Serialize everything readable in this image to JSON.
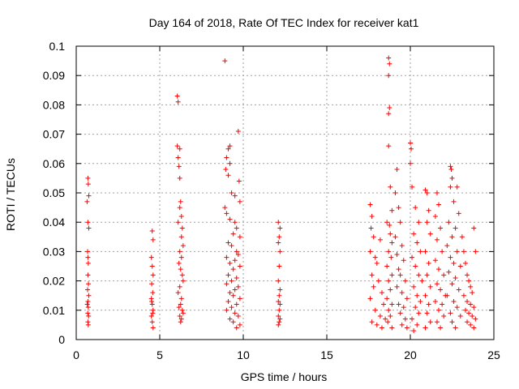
{
  "chart_data": {
    "type": "scatter",
    "title": "Day 164 of 2018, Rate Of TEC Index for receiver kat1",
    "xlabel": "GPS time / hours",
    "ylabel": "ROTI / TECUs",
    "xlim": [
      0,
      25
    ],
    "ylim": [
      0,
      0.1
    ],
    "x_ticks": [
      "0",
      "5",
      "10",
      "15",
      "20",
      "25"
    ],
    "y_ticks": [
      "0",
      "0.01",
      "0.02",
      "0.03",
      "0.04",
      "0.05",
      "0.06",
      "0.07",
      "0.08",
      "0.09",
      "0.1"
    ],
    "grid": true,
    "marker": "+",
    "color": "#ff0000",
    "series": [
      {
        "name": "ROTI",
        "points": [
          [
            0.65,
            0.047
          ],
          [
            0.7,
            0.055
          ],
          [
            0.72,
            0.053
          ],
          [
            0.75,
            0.049
          ],
          [
            0.7,
            0.04
          ],
          [
            0.75,
            0.038
          ],
          [
            0.68,
            0.03
          ],
          [
            0.7,
            0.028
          ],
          [
            0.72,
            0.026
          ],
          [
            0.7,
            0.022
          ],
          [
            0.73,
            0.019
          ],
          [
            0.68,
            0.017
          ],
          [
            0.75,
            0.015
          ],
          [
            0.7,
            0.013
          ],
          [
            0.72,
            0.011
          ],
          [
            0.69,
            0.009
          ],
          [
            0.74,
            0.008
          ],
          [
            0.7,
            0.006
          ],
          [
            0.72,
            0.005
          ],
          [
            0.66,
            0.012
          ],
          [
            4.55,
            0.037
          ],
          [
            4.6,
            0.034
          ],
          [
            4.5,
            0.028
          ],
          [
            4.55,
            0.025
          ],
          [
            4.6,
            0.022
          ],
          [
            4.52,
            0.019
          ],
          [
            4.58,
            0.016
          ],
          [
            4.5,
            0.014
          ],
          [
            4.55,
            0.012
          ],
          [
            4.6,
            0.01
          ],
          [
            4.5,
            0.008
          ],
          [
            4.55,
            0.006
          ],
          [
            4.6,
            0.004
          ],
          [
            4.52,
            0.013
          ],
          [
            4.58,
            0.009
          ],
          [
            6.05,
            0.083
          ],
          [
            6.1,
            0.081
          ],
          [
            6.05,
            0.066
          ],
          [
            6.2,
            0.065
          ],
          [
            6.1,
            0.062
          ],
          [
            6.15,
            0.059
          ],
          [
            6.2,
            0.055
          ],
          [
            6.25,
            0.047
          ],
          [
            6.2,
            0.045
          ],
          [
            6.3,
            0.042
          ],
          [
            6.1,
            0.04
          ],
          [
            6.35,
            0.038
          ],
          [
            6.3,
            0.035
          ],
          [
            6.4,
            0.032
          ],
          [
            6.2,
            0.03
          ],
          [
            6.3,
            0.028
          ],
          [
            6.15,
            0.026
          ],
          [
            6.25,
            0.024
          ],
          [
            6.35,
            0.022
          ],
          [
            6.4,
            0.02
          ],
          [
            6.2,
            0.018
          ],
          [
            6.1,
            0.016
          ],
          [
            6.3,
            0.014
          ],
          [
            6.25,
            0.012
          ],
          [
            6.15,
            0.011
          ],
          [
            6.35,
            0.01
          ],
          [
            6.2,
            0.008
          ],
          [
            6.3,
            0.007
          ],
          [
            6.25,
            0.006
          ],
          [
            6.4,
            0.009
          ],
          [
            8.9,
            0.095
          ],
          [
            9.2,
            0.066
          ],
          [
            9.1,
            0.065
          ],
          [
            9.0,
            0.062
          ],
          [
            9.2,
            0.06
          ],
          [
            8.95,
            0.058
          ],
          [
            9.1,
            0.056
          ],
          [
            9.3,
            0.05
          ],
          [
            9.5,
            0.049
          ],
          [
            9.7,
            0.071
          ],
          [
            9.75,
            0.054
          ],
          [
            9.8,
            0.047
          ],
          [
            8.9,
            0.045
          ],
          [
            9.0,
            0.043
          ],
          [
            9.2,
            0.041
          ],
          [
            9.5,
            0.04
          ],
          [
            9.6,
            0.038
          ],
          [
            9.4,
            0.036
          ],
          [
            9.8,
            0.035
          ],
          [
            9.1,
            0.033
          ],
          [
            9.3,
            0.032
          ],
          [
            9.6,
            0.03
          ],
          [
            9.7,
            0.029
          ],
          [
            9.0,
            0.028
          ],
          [
            9.5,
            0.027
          ],
          [
            9.2,
            0.026
          ],
          [
            9.8,
            0.025
          ],
          [
            9.4,
            0.024
          ],
          [
            9.1,
            0.022
          ],
          [
            9.6,
            0.021
          ],
          [
            9.3,
            0.02
          ],
          [
            9.0,
            0.019
          ],
          [
            9.7,
            0.018
          ],
          [
            9.5,
            0.017
          ],
          [
            9.2,
            0.016
          ],
          [
            9.4,
            0.015
          ],
          [
            9.8,
            0.014
          ],
          [
            9.1,
            0.013
          ],
          [
            9.6,
            0.012
          ],
          [
            9.3,
            0.011
          ],
          [
            9.0,
            0.01
          ],
          [
            9.5,
            0.009
          ],
          [
            9.7,
            0.008
          ],
          [
            9.2,
            0.007
          ],
          [
            9.4,
            0.006
          ],
          [
            9.8,
            0.005
          ],
          [
            9.6,
            0.004
          ],
          [
            12.1,
            0.04
          ],
          [
            12.2,
            0.038
          ],
          [
            12.15,
            0.035
          ],
          [
            12.1,
            0.033
          ],
          [
            12.2,
            0.03
          ],
          [
            12.15,
            0.025
          ],
          [
            12.1,
            0.02
          ],
          [
            12.2,
            0.017
          ],
          [
            12.15,
            0.015
          ],
          [
            12.1,
            0.013
          ],
          [
            12.2,
            0.012
          ],
          [
            12.15,
            0.01
          ],
          [
            12.1,
            0.008
          ],
          [
            12.2,
            0.007
          ],
          [
            12.15,
            0.006
          ],
          [
            12.1,
            0.005
          ],
          [
            17.6,
            0.046
          ],
          [
            17.7,
            0.042
          ],
          [
            17.65,
            0.038
          ],
          [
            17.8,
            0.035
          ],
          [
            17.6,
            0.03
          ],
          [
            17.9,
            0.028
          ],
          [
            18.2,
            0.034
          ],
          [
            18.0,
            0.026
          ],
          [
            17.7,
            0.022
          ],
          [
            18.1,
            0.02
          ],
          [
            17.8,
            0.018
          ],
          [
            18.3,
            0.016
          ],
          [
            17.6,
            0.014
          ],
          [
            18.4,
            0.012
          ],
          [
            17.9,
            0.01
          ],
          [
            18.2,
            0.008
          ],
          [
            17.7,
            0.006
          ],
          [
            18.0,
            0.005
          ],
          [
            18.5,
            0.007
          ],
          [
            18.3,
            0.004
          ],
          [
            18.7,
            0.096
          ],
          [
            18.75,
            0.094
          ],
          [
            18.7,
            0.09
          ],
          [
            18.75,
            0.079
          ],
          [
            18.7,
            0.077
          ],
          [
            18.7,
            0.066
          ],
          [
            18.8,
            0.052
          ],
          [
            18.9,
            0.044
          ],
          [
            18.6,
            0.04
          ],
          [
            18.75,
            0.039
          ],
          [
            18.8,
            0.036
          ],
          [
            18.9,
            0.033
          ],
          [
            18.7,
            0.03
          ],
          [
            18.85,
            0.028
          ],
          [
            18.6,
            0.025
          ],
          [
            18.9,
            0.022
          ],
          [
            18.7,
            0.02
          ],
          [
            18.8,
            0.017
          ],
          [
            18.6,
            0.014
          ],
          [
            18.9,
            0.012
          ],
          [
            18.7,
            0.01
          ],
          [
            18.8,
            0.008
          ],
          [
            18.65,
            0.006
          ],
          [
            18.9,
            0.004
          ],
          [
            19.2,
            0.058
          ],
          [
            19.1,
            0.05
          ],
          [
            19.3,
            0.045
          ],
          [
            19.4,
            0.04
          ],
          [
            19.1,
            0.035
          ],
          [
            19.5,
            0.032
          ],
          [
            19.2,
            0.029
          ],
          [
            19.6,
            0.027
          ],
          [
            19.3,
            0.024
          ],
          [
            19.4,
            0.022
          ],
          [
            19.7,
            0.02
          ],
          [
            19.2,
            0.018
          ],
          [
            19.5,
            0.016
          ],
          [
            19.8,
            0.014
          ],
          [
            19.3,
            0.012
          ],
          [
            19.6,
            0.011
          ],
          [
            19.4,
            0.009
          ],
          [
            19.7,
            0.007
          ],
          [
            19.5,
            0.005
          ],
          [
            19.8,
            0.004
          ],
          [
            20.0,
            0.067
          ],
          [
            20.05,
            0.065
          ],
          [
            20.0,
            0.06
          ],
          [
            20.1,
            0.052
          ],
          [
            20.3,
            0.045
          ],
          [
            20.5,
            0.04
          ],
          [
            20.2,
            0.036
          ],
          [
            20.4,
            0.033
          ],
          [
            20.6,
            0.03
          ],
          [
            20.1,
            0.028
          ],
          [
            20.3,
            0.025
          ],
          [
            20.5,
            0.022
          ],
          [
            20.7,
            0.02
          ],
          [
            20.2,
            0.018
          ],
          [
            20.4,
            0.015
          ],
          [
            20.6,
            0.013
          ],
          [
            20.3,
            0.011
          ],
          [
            20.5,
            0.009
          ],
          [
            20.1,
            0.007
          ],
          [
            20.4,
            0.005
          ],
          [
            20.2,
            0.003
          ],
          [
            20.9,
            0.051
          ],
          [
            21.0,
            0.05
          ],
          [
            21.1,
            0.044
          ],
          [
            21.0,
            0.04
          ],
          [
            21.2,
            0.036
          ],
          [
            20.9,
            0.03
          ],
          [
            21.1,
            0.026
          ],
          [
            21.0,
            0.022
          ],
          [
            21.2,
            0.018
          ],
          [
            20.9,
            0.015
          ],
          [
            21.1,
            0.012
          ],
          [
            21.0,
            0.009
          ],
          [
            21.2,
            0.006
          ],
          [
            20.9,
            0.004
          ],
          [
            21.6,
            0.05
          ],
          [
            21.7,
            0.046
          ],
          [
            21.5,
            0.042
          ],
          [
            21.8,
            0.038
          ],
          [
            21.6,
            0.034
          ],
          [
            21.9,
            0.03
          ],
          [
            21.5,
            0.027
          ],
          [
            21.7,
            0.024
          ],
          [
            22.0,
            0.022
          ],
          [
            21.6,
            0.019
          ],
          [
            21.8,
            0.017
          ],
          [
            22.1,
            0.015
          ],
          [
            21.5,
            0.013
          ],
          [
            21.9,
            0.012
          ],
          [
            21.7,
            0.01
          ],
          [
            22.0,
            0.008
          ],
          [
            21.6,
            0.006
          ],
          [
            21.8,
            0.004
          ],
          [
            22.4,
            0.059
          ],
          [
            22.45,
            0.058
          ],
          [
            22.5,
            0.055
          ],
          [
            22.4,
            0.052
          ],
          [
            22.8,
            0.052
          ],
          [
            22.6,
            0.047
          ],
          [
            22.3,
            0.04
          ],
          [
            22.9,
            0.043
          ],
          [
            22.7,
            0.038
          ],
          [
            22.5,
            0.035
          ],
          [
            22.2,
            0.032
          ],
          [
            22.8,
            0.03
          ],
          [
            22.4,
            0.028
          ],
          [
            22.6,
            0.026
          ],
          [
            23.0,
            0.025
          ],
          [
            22.3,
            0.023
          ],
          [
            22.7,
            0.021
          ],
          [
            22.5,
            0.019
          ],
          [
            22.9,
            0.017
          ],
          [
            22.2,
            0.015
          ],
          [
            22.6,
            0.013
          ],
          [
            22.8,
            0.011
          ],
          [
            22.4,
            0.009
          ],
          [
            23.0,
            0.008
          ],
          [
            22.5,
            0.006
          ],
          [
            22.7,
            0.004
          ],
          [
            23.1,
            0.035
          ],
          [
            23.2,
            0.03
          ],
          [
            23.3,
            0.026
          ],
          [
            23.4,
            0.022
          ],
          [
            23.5,
            0.02
          ],
          [
            23.6,
            0.018
          ],
          [
            23.7,
            0.016
          ],
          [
            23.8,
            0.038
          ],
          [
            23.9,
            0.03
          ],
          [
            23.2,
            0.015
          ],
          [
            23.4,
            0.013
          ],
          [
            23.6,
            0.012
          ],
          [
            23.8,
            0.011
          ],
          [
            23.3,
            0.01
          ],
          [
            23.5,
            0.009
          ],
          [
            23.7,
            0.008
          ],
          [
            23.9,
            0.007
          ],
          [
            23.4,
            0.006
          ],
          [
            23.6,
            0.005
          ],
          [
            23.8,
            0.004
          ]
        ]
      }
    ]
  }
}
